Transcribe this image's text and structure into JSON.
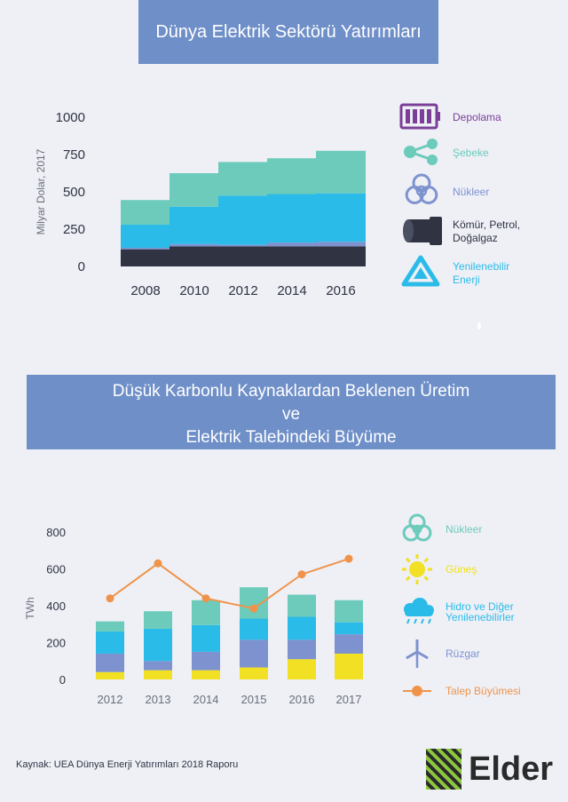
{
  "title1": "Dünya Elektrik Sektörü Yatırımları",
  "title2_line1": "Düşük Karbonlu Kaynaklardan Beklenen Üretim",
  "title2_line2": "ve",
  "title2_line3": "Elektrik Talebindeki Büyüme",
  "source": "Kaynak: UEA Dünya Enerji Yatırımları 2018 Raporu",
  "brand": "Elder",
  "colors": {
    "coal": "#2f3342",
    "nuclear": "#7e92cf",
    "renewables": "#2bbbe8",
    "grid": "#6ccbbb",
    "storage": "#7b3f98",
    "solar": "#f1e023",
    "hydro": "#2bbbe8",
    "wind": "#7e92cf",
    "nuclear2": "#6ccbbb",
    "demand": "#f0934a"
  },
  "chart_data": [
    {
      "type": "bar",
      "stacked": true,
      "title": "Dünya Elektrik Sektörü Yatırımları",
      "ylabel": "Milyar Dolar, 2017",
      "ylim": [
        0,
        1000
      ],
      "yticks": [
        "0",
        "250",
        "500",
        "750",
        "1000"
      ],
      "categories": [
        "2008",
        "2010",
        "2012",
        "2014",
        "2016"
      ],
      "series": [
        {
          "name": "Kömür, Petrol, Doğalgaz",
          "color_key": "coal",
          "values": [
            115,
            135,
            135,
            135,
            135
          ]
        },
        {
          "name": "Nükleer",
          "color_key": "nuclear",
          "values": [
            10,
            15,
            10,
            25,
            30
          ]
        },
        {
          "name": "Yenilenebilir Enerji",
          "color_key": "renewables",
          "values": [
            155,
            250,
            330,
            325,
            325
          ]
        },
        {
          "name": "Şebeke",
          "color_key": "grid",
          "values": [
            165,
            225,
            225,
            240,
            285
          ]
        },
        {
          "name": "Depolama",
          "color_key": "storage",
          "values": [
            0,
            0,
            0,
            0,
            0
          ]
        }
      ],
      "legend": [
        {
          "label": "Depolama",
          "color_key": "storage",
          "icon": "battery-icon"
        },
        {
          "label": "Şebeke",
          "color_key": "grid",
          "icon": "share-icon"
        },
        {
          "label": "Nükleer",
          "color_key": "nuclear",
          "icon": "biohazard-icon"
        },
        {
          "label": "Kömür, Petrol, Doğalgaz",
          "color_key": "coal",
          "icon": "pipe-icon"
        },
        {
          "label": "Yenilenebilir Enerji",
          "color_key": "renewables",
          "icon": "recycle-icon"
        }
      ]
    },
    {
      "type": "bar",
      "stacked": true,
      "title": "Düşük Karbonlu Kaynaklardan Beklenen Üretim ve Elektrik Talebindeki Büyüme",
      "ylabel": "TWh",
      "ylim": [
        0,
        800
      ],
      "yticks": [
        "0",
        "200",
        "400",
        "600",
        "800"
      ],
      "categories": [
        "2012",
        "2013",
        "2014",
        "2015",
        "2016",
        "2017"
      ],
      "series": [
        {
          "name": "Güneş",
          "color_key": "solar",
          "values": [
            40,
            50,
            50,
            65,
            110,
            140
          ]
        },
        {
          "name": "Rüzgar",
          "color_key": "wind",
          "values": [
            100,
            50,
            100,
            150,
            105,
            105
          ]
        },
        {
          "name": "Hidro ve Diğer Yenilenebilirler",
          "color_key": "hydro",
          "values": [
            120,
            175,
            145,
            115,
            125,
            65
          ]
        },
        {
          "name": "Nükleer",
          "color_key": "nuclear2",
          "values": [
            55,
            95,
            135,
            170,
            120,
            120
          ]
        }
      ],
      "line_series": {
        "name": "Talep Büyümesi",
        "color_key": "demand",
        "values": [
          440,
          630,
          440,
          385,
          570,
          655
        ]
      },
      "legend": [
        {
          "label": "Nükleer",
          "color_key": "nuclear2",
          "icon": "biohazard-icon"
        },
        {
          "label": "Güneş",
          "color_key": "solar",
          "icon": "sun-icon"
        },
        {
          "label": "Hidro ve Diğer Yenilenebilirler",
          "color_key": "hydro",
          "icon": "rain-cloud-icon"
        },
        {
          "label": "Rüzgar",
          "color_key": "wind",
          "icon": "wind-turbine-icon"
        },
        {
          "label": "Talep Büyümesi",
          "color_key": "demand",
          "icon": "line-marker-icon"
        }
      ]
    }
  ]
}
